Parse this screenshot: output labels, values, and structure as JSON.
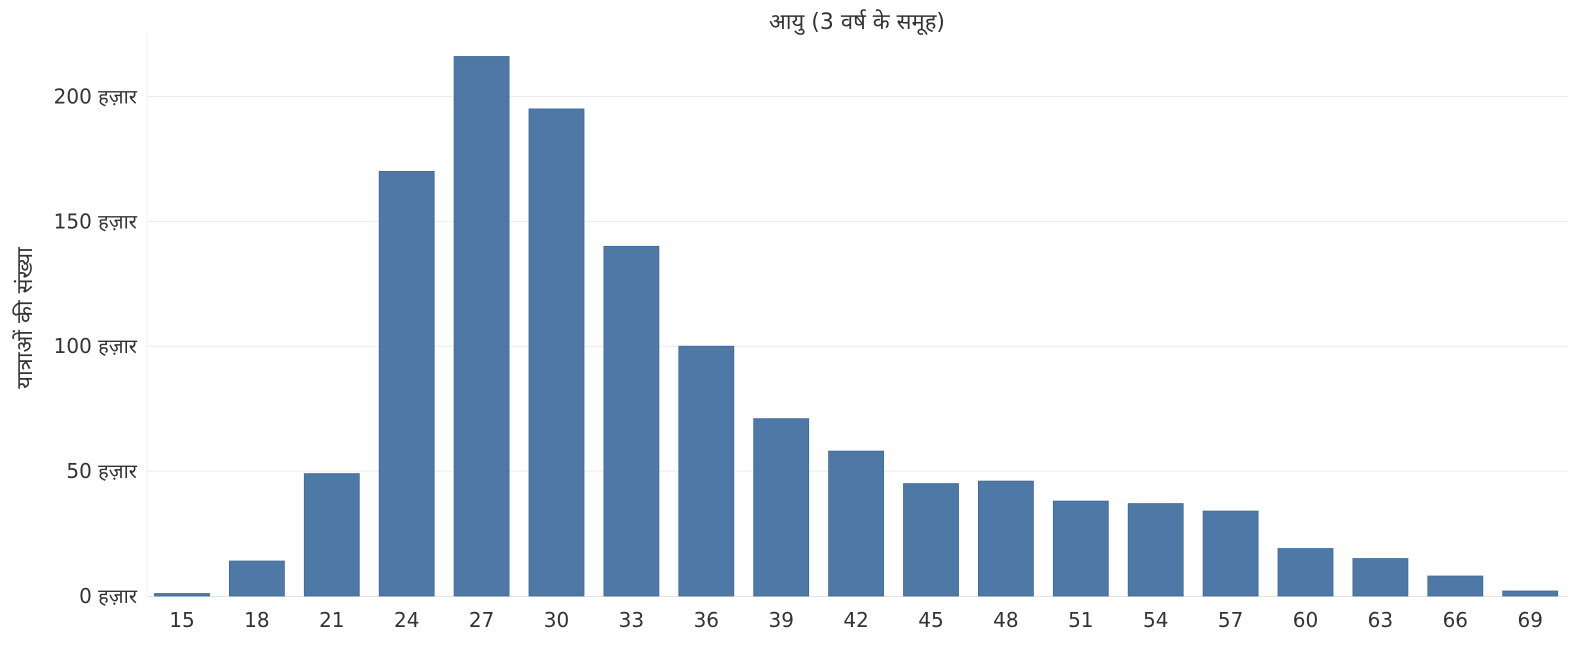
{
  "chart_data": {
    "type": "bar",
    "title": "",
    "xlabel": "आयु (3 वर्ष के समूह)",
    "ylabel": "यात्राओं की संख्या",
    "categories": [
      "15",
      "18",
      "21",
      "24",
      "27",
      "30",
      "33",
      "36",
      "39",
      "42",
      "45",
      "48",
      "51",
      "54",
      "57",
      "60",
      "63",
      "66",
      "69"
    ],
    "values": [
      1000,
      14000,
      49000,
      170000,
      216000,
      195000,
      140000,
      100000,
      71000,
      58000,
      45000,
      46000,
      38000,
      37000,
      34000,
      19000,
      15000,
      8000,
      2000
    ],
    "ylim": [
      0,
      225000
    ],
    "yticks": [
      0,
      50000,
      100000,
      150000,
      200000
    ],
    "ytick_labels": [
      "0 हज़ार",
      "50 हज़ार",
      "100 हज़ार",
      "150 हज़ार",
      "200 हज़ार"
    ],
    "grid": true,
    "bar_color": "#4e79a7",
    "grid_color": "#ececec"
  }
}
